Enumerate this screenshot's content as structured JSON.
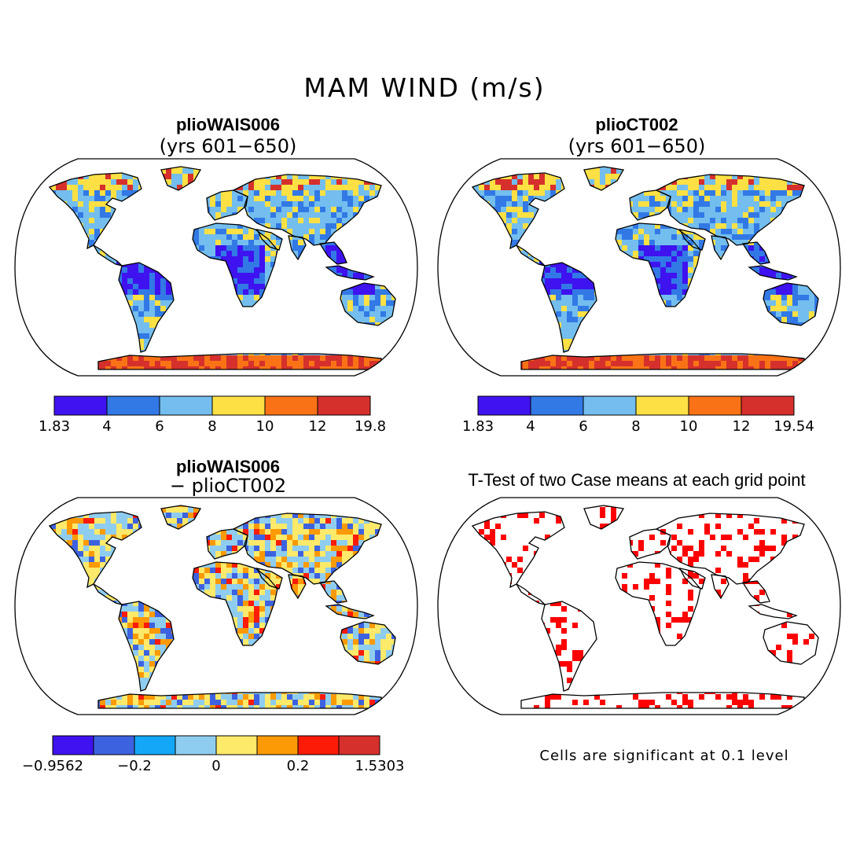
{
  "title": "MAM WIND (m/s)",
  "panels": [
    {
      "title": "plioWAIS006",
      "subtitle": "(yrs 601−650)",
      "kind": "wind"
    },
    {
      "title": "plioCT002",
      "subtitle": "(yrs 601−650)",
      "kind": "wind"
    },
    {
      "title": "plioWAIS006",
      "subtitle": "− plioCT002",
      "kind": "diff"
    },
    {
      "title": "T-Test of two Case means at each grid point",
      "subtitle": "",
      "kind": "ttest"
    }
  ],
  "colorbars": [
    {
      "colors": [
        "#3f12f0",
        "#3279e6",
        "#73beee",
        "#fde044",
        "#f97316",
        "#d6302c"
      ],
      "ticks": [
        "1.83",
        "4",
        "6",
        "8",
        "10",
        "12",
        "19.8"
      ]
    },
    {
      "colors": [
        "#3f12f0",
        "#3279e6",
        "#73beee",
        "#fde044",
        "#f97316",
        "#d6302c"
      ],
      "ticks": [
        "1.83",
        "4",
        "6",
        "8",
        "10",
        "12",
        "19.54"
      ]
    },
    {
      "colors": [
        "#3f12f0",
        "#3d62e0",
        "#14a7f8",
        "#8fcdf0",
        "#fde96a",
        "#fb9a05",
        "#fb1b07",
        "#d6302c"
      ],
      "ticks": [
        "−0.9562",
        "−0.2",
        "0",
        "0.2",
        "1.5303"
      ],
      "tick_at": [
        0,
        2,
        4,
        6,
        8
      ]
    }
  ],
  "significance_note": "Cells are significant at 0.1 level",
  "significance_color": "#ff0000"
}
